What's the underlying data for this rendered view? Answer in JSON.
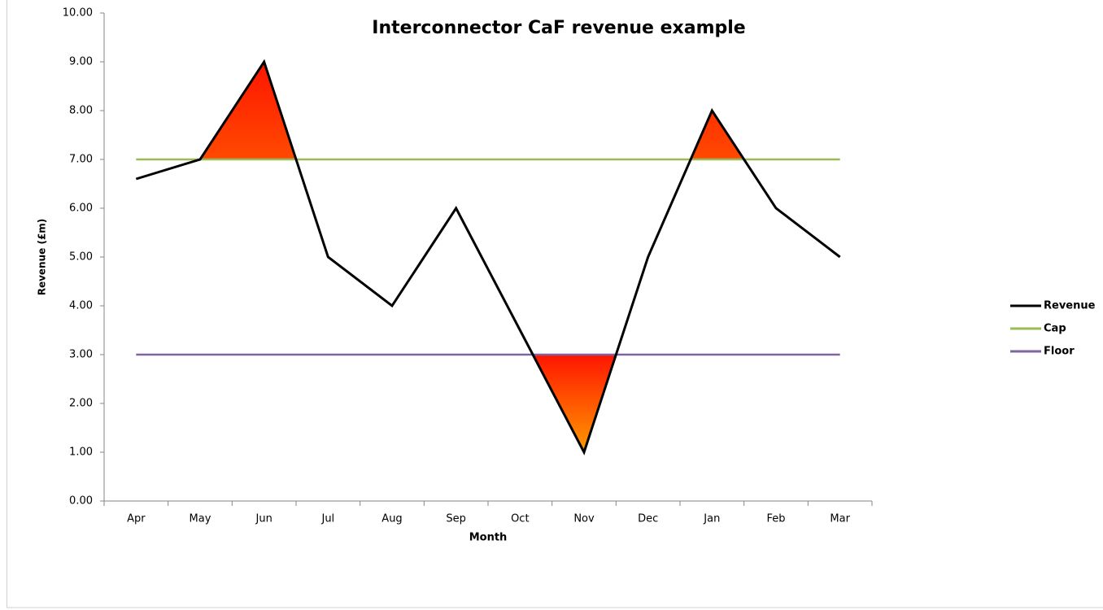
{
  "chart_data": {
    "type": "line",
    "title": "Interconnector CaF revenue example",
    "x_label": "Month",
    "y_label": "Revenue (£m)",
    "categories": [
      "Apr",
      "May",
      "Jun",
      "Jul",
      "Aug",
      "Sep",
      "Oct",
      "Nov",
      "Dec",
      "Jan",
      "Feb",
      "Mar"
    ],
    "series": [
      {
        "name": "Revenue",
        "color": "#000000",
        "values": [
          6.6,
          7,
          9,
          5,
          4,
          6,
          3.5,
          1,
          5,
          8,
          6,
          5
        ]
      },
      {
        "name": "Cap",
        "color": "#9bbb59",
        "values": [
          7,
          7,
          7,
          7,
          7,
          7,
          7,
          7,
          7,
          7,
          7,
          7
        ]
      },
      {
        "name": "Floor",
        "color": "#8064a2",
        "values": [
          3,
          3,
          3,
          3,
          3,
          3,
          3,
          3,
          3,
          3,
          3,
          3
        ]
      }
    ],
    "ylim": [
      0,
      10
    ],
    "yticks": [
      {
        "value": 0,
        "label": "0.00"
      },
      {
        "value": 1,
        "label": "1.00"
      },
      {
        "value": 2,
        "label": "2.00"
      },
      {
        "value": 3,
        "label": "3.00"
      },
      {
        "value": 4,
        "label": "4.00"
      },
      {
        "value": 5,
        "label": "5.00"
      },
      {
        "value": 6,
        "label": "6.00"
      },
      {
        "value": 7,
        "label": "7.00"
      },
      {
        "value": 8,
        "label": "8.00"
      },
      {
        "value": 9,
        "label": "9.00"
      },
      {
        "value": 10,
        "label": "10.00"
      }
    ],
    "grid": false,
    "legend": "right"
  }
}
